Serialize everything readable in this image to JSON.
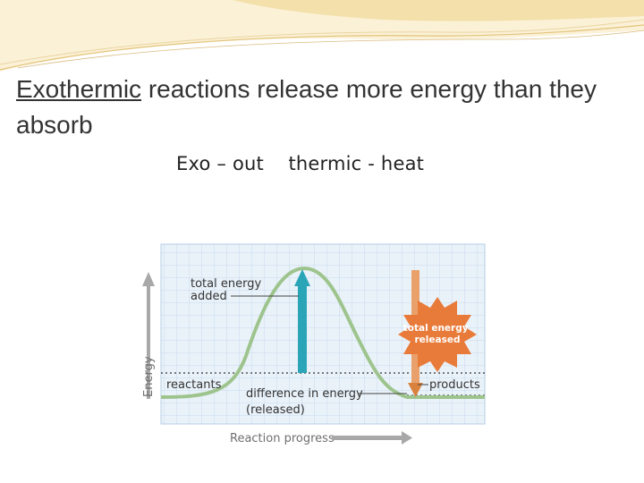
{
  "slide": {
    "title_underlined": "Exothermic",
    "title_rest": " reactions release more energy than they absorb",
    "subtitle": "Exo – out    thermic - heat"
  },
  "diagram": {
    "energy_axis_label": "Energy",
    "progress_axis_label": "Reaction progress",
    "total_energy_added": [
      "total energy",
      "added"
    ],
    "total_energy_released": [
      "total energy",
      "released"
    ],
    "reactants": "reactants",
    "products": "products",
    "difference": [
      "difference in energy",
      "(released)"
    ]
  },
  "colors": {
    "grid_bg": "#eaf2f9",
    "grid_line": "#bcd4ea",
    "curve": "#9ec48e",
    "energy_in_arrow": "#2aa5b8",
    "energy_out_arrow": "#e9a06a",
    "burst": "#e97b3a",
    "axis_arrow": "#a8a8a8",
    "banner": "#f3dca0"
  }
}
